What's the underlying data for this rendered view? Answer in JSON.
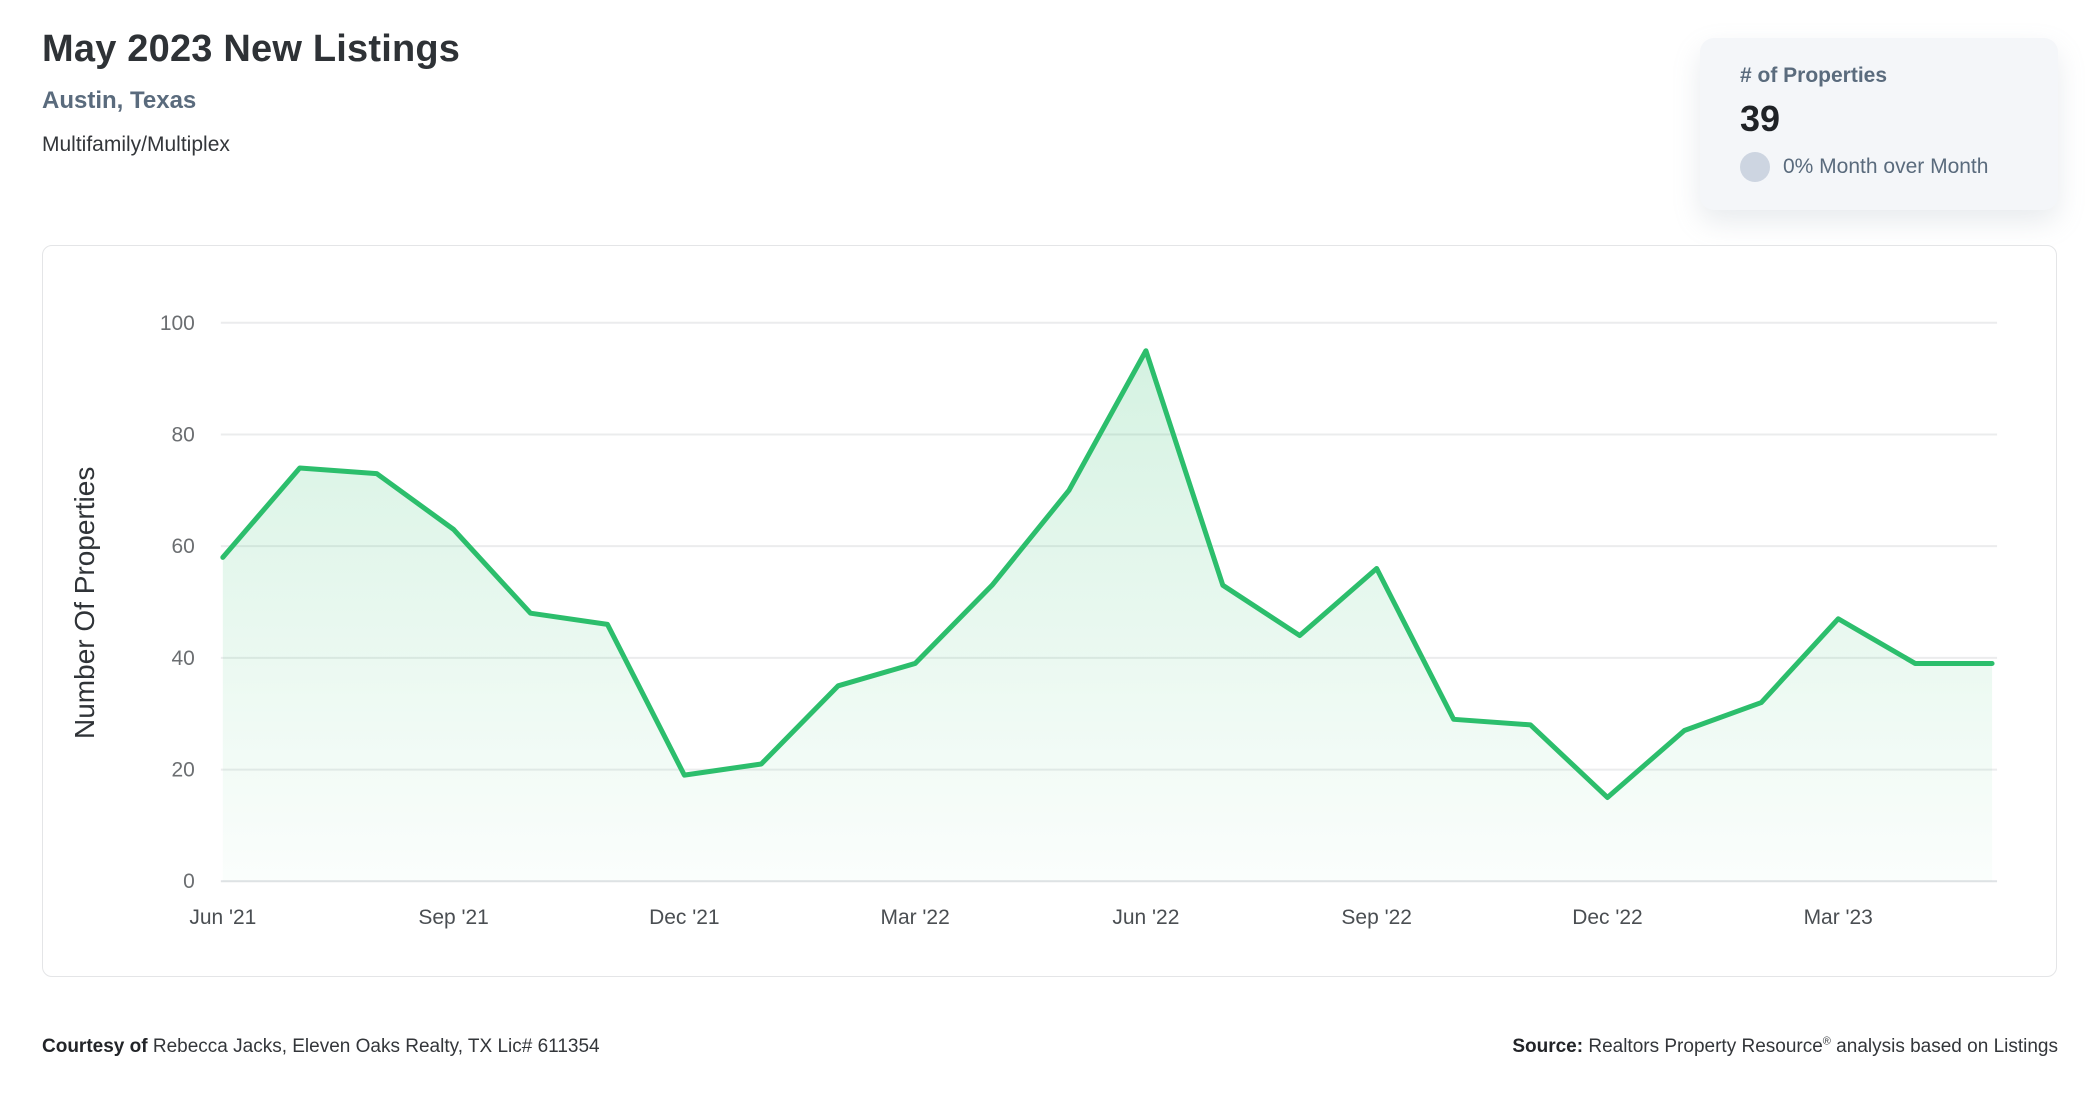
{
  "header": {
    "title": "May 2023 New Listings",
    "subtitle": "Austin, Texas",
    "property_type": "Multifamily/Multiplex"
  },
  "stats_card": {
    "label": "# of Properties",
    "value": "39",
    "change_text": "0% Month over Month",
    "neutral_dot_color": "#cdd5e1"
  },
  "chart_data": {
    "type": "area",
    "title": "May 2023 New Listings",
    "x": [
      "Jun '21",
      "Jul '21",
      "Aug '21",
      "Sep '21",
      "Oct '21",
      "Nov '21",
      "Dec '21",
      "Jan '22",
      "Feb '22",
      "Mar '22",
      "Apr '22",
      "May '22",
      "Jun '22",
      "Jul '22",
      "Aug '22",
      "Sep '22",
      "Oct '22",
      "Nov '22",
      "Dec '22",
      "Jan '23",
      "Feb '23",
      "Mar '23",
      "Apr '23",
      "May '23"
    ],
    "values": [
      58,
      74,
      73,
      63,
      48,
      46,
      19,
      21,
      35,
      39,
      53,
      70,
      95,
      53,
      44,
      56,
      29,
      28,
      15,
      27,
      32,
      47,
      39,
      39
    ],
    "xlabel": "",
    "ylabel": "Number Of Properties",
    "ylim": [
      0,
      100
    ],
    "yticks": [
      0,
      20,
      40,
      60,
      80,
      100
    ],
    "xtick_every": 3,
    "grid": true,
    "legend": "none",
    "line_color": "#2cbe6c"
  },
  "footer": {
    "courtesy_label": "Courtesy of",
    "courtesy_text": " Rebecca Jacks, Eleven Oaks Realty, TX Lic# 611354",
    "source_label": "Source:",
    "source_text_pre": " Realtors Property Resource",
    "source_reg": "®",
    "source_text_post": " analysis based on Listings"
  }
}
